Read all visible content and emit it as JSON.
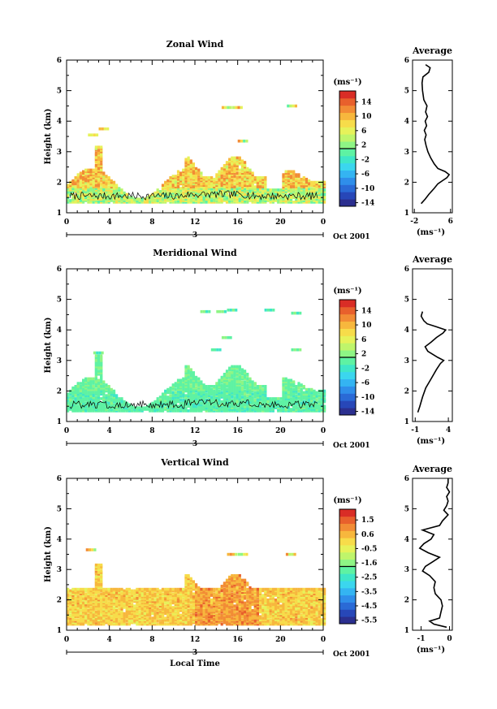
{
  "chart_data": [
    {
      "type": "heatmap",
      "title": "Zonal Wind",
      "ylabel": "Height (km)",
      "y_ticks": [
        "1",
        "2",
        "3",
        "4",
        "5",
        "6"
      ],
      "ylim": [
        1,
        6
      ],
      "x_ticks": [
        "0",
        "4",
        "8",
        "12",
        "16",
        "20",
        "0"
      ],
      "xlim": [
        0,
        24
      ],
      "date_day": "3",
      "date_label": "Oct 2001",
      "colorbar_unit": "(ms⁻¹)",
      "colorbar_ticks": [
        "14",
        "10",
        "6",
        "2",
        "-2",
        "-6",
        "-10",
        "-14"
      ],
      "colorbar_range": [
        -16,
        16
      ],
      "values_description_range": [
        -2,
        12
      ],
      "average": {
        "title": "Average",
        "xlabel": "(ms⁻¹)",
        "x_ticks": [
          "-2",
          "6"
        ],
        "xlim": [
          -2.4,
          6.4
        ],
        "profile": [
          [
            1.3,
            -0.5
          ],
          [
            1.45,
            0.4
          ],
          [
            1.6,
            1.2
          ],
          [
            1.8,
            2.4
          ],
          [
            1.95,
            3.2
          ],
          [
            2.05,
            4.2
          ],
          [
            2.15,
            5.2
          ],
          [
            2.25,
            5.7
          ],
          [
            2.35,
            4.8
          ],
          [
            2.45,
            3.2
          ],
          [
            2.6,
            2.4
          ],
          [
            2.8,
            1.6
          ],
          [
            3.0,
            1.0
          ],
          [
            3.2,
            0.6
          ],
          [
            3.4,
            0.3
          ],
          [
            3.55,
            0.6
          ],
          [
            3.7,
            0.2
          ],
          [
            3.85,
            0.7
          ],
          [
            4.0,
            0.4
          ],
          [
            4.15,
            0.9
          ],
          [
            4.3,
            0.5
          ],
          [
            4.5,
            0.8
          ],
          [
            4.7,
            0.1
          ],
          [
            5.0,
            -0.2
          ],
          [
            5.25,
            -0.3
          ],
          [
            5.45,
            -0.1
          ],
          [
            5.6,
            1.2
          ],
          [
            5.75,
            1.5
          ],
          [
            5.85,
            0.5
          ]
        ]
      }
    },
    {
      "type": "heatmap",
      "title": "Meridional Wind",
      "ylabel": "Height (km)",
      "y_ticks": [
        "1",
        "2",
        "3",
        "4",
        "5",
        "6"
      ],
      "ylim": [
        1,
        6
      ],
      "x_ticks": [
        "0",
        "4",
        "8",
        "12",
        "16",
        "20",
        "0"
      ],
      "xlim": [
        0,
        24
      ],
      "date_day": "3",
      "date_label": "Oct 2001",
      "colorbar_unit": "(ms⁻¹)",
      "colorbar_ticks": [
        "14",
        "10",
        "6",
        "2",
        "-2",
        "-6",
        "-10",
        "-14"
      ],
      "colorbar_range": [
        -16,
        16
      ],
      "values_description_range": [
        -4,
        2
      ],
      "average": {
        "title": "Average",
        "xlabel": "(ms⁻¹)",
        "x_ticks": [
          "-1",
          "4"
        ],
        "xlim": [
          -1.4,
          4.6
        ],
        "profile": [
          [
            1.3,
            -0.6
          ],
          [
            1.5,
            -0.3
          ],
          [
            1.8,
            0.1
          ],
          [
            2.1,
            0.6
          ],
          [
            2.4,
            1.4
          ],
          [
            2.7,
            2.2
          ],
          [
            2.9,
            2.8
          ],
          [
            3.0,
            3.3
          ],
          [
            3.1,
            2.4
          ],
          [
            3.3,
            0.9
          ],
          [
            3.45,
            0.5
          ],
          [
            3.6,
            1.4
          ],
          [
            3.75,
            2.2
          ],
          [
            3.9,
            3.2
          ],
          [
            4.0,
            3.6
          ],
          [
            4.1,
            2.2
          ],
          [
            4.2,
            0.8
          ],
          [
            4.3,
            0.3
          ],
          [
            4.45,
            -0.1
          ],
          [
            4.6,
            0.1
          ]
        ]
      }
    },
    {
      "type": "heatmap",
      "title": "Vertical Wind",
      "ylabel": "Height (km)",
      "xlabel": "Local Time",
      "y_ticks": [
        "1",
        "2",
        "3",
        "4",
        "5",
        "6"
      ],
      "ylim": [
        1,
        6
      ],
      "x_ticks": [
        "0",
        "4",
        "8",
        "12",
        "16",
        "20",
        "0"
      ],
      "xlim": [
        0,
        24
      ],
      "date_day": "3",
      "date_label": "Oct 2001",
      "colorbar_unit": "(ms⁻¹)",
      "colorbar_ticks": [
        "1.5",
        "0.6",
        "-0.5",
        "-1.6",
        "-2.5",
        "-3.5",
        "-4.5",
        "-5.5"
      ],
      "colorbar_range": [
        -6.0,
        2.0
      ],
      "values_description_range": [
        -2,
        1
      ],
      "average": {
        "title": "Average",
        "xlabel": "(ms⁻¹)",
        "x_ticks": [
          "-1",
          "0"
        ],
        "xlim": [
          -1.3,
          0.1
        ],
        "profile": [
          [
            1.1,
            -0.1
          ],
          [
            1.2,
            -0.55
          ],
          [
            1.3,
            -0.7
          ],
          [
            1.4,
            -0.35
          ],
          [
            1.6,
            -0.3
          ],
          [
            1.8,
            -0.25
          ],
          [
            2.0,
            -0.3
          ],
          [
            2.2,
            -0.5
          ],
          [
            2.4,
            -0.55
          ],
          [
            2.6,
            -0.5
          ],
          [
            2.8,
            -0.7
          ],
          [
            2.95,
            -0.95
          ],
          [
            3.1,
            -0.85
          ],
          [
            3.25,
            -0.6
          ],
          [
            3.4,
            -0.35
          ],
          [
            3.55,
            -0.75
          ],
          [
            3.7,
            -1.05
          ],
          [
            3.85,
            -0.9
          ],
          [
            4.0,
            -0.65
          ],
          [
            4.15,
            -0.55
          ],
          [
            4.3,
            -0.95
          ],
          [
            4.45,
            -0.35
          ],
          [
            4.6,
            -0.25
          ],
          [
            4.8,
            -0.05
          ],
          [
            4.95,
            -0.2
          ],
          [
            5.1,
            -0.1
          ],
          [
            5.25,
            -0.05
          ],
          [
            5.4,
            -0.1
          ],
          [
            5.55,
            0.0
          ],
          [
            5.7,
            -0.1
          ],
          [
            5.85,
            -0.05
          ],
          [
            6.0,
            -0.05
          ]
        ]
      }
    }
  ],
  "colors": {
    "colormap": [
      "#2b2f8f",
      "#2747b8",
      "#2a6ad6",
      "#2f8eea",
      "#34b4f2",
      "#3bd6ee",
      "#3fe6c8",
      "#5ef2a3",
      "#8ef585",
      "#bff56b",
      "#e6f25a",
      "#f7dc4a",
      "#f7b73d",
      "#f28c35",
      "#e8602c",
      "#d92d26"
    ]
  }
}
